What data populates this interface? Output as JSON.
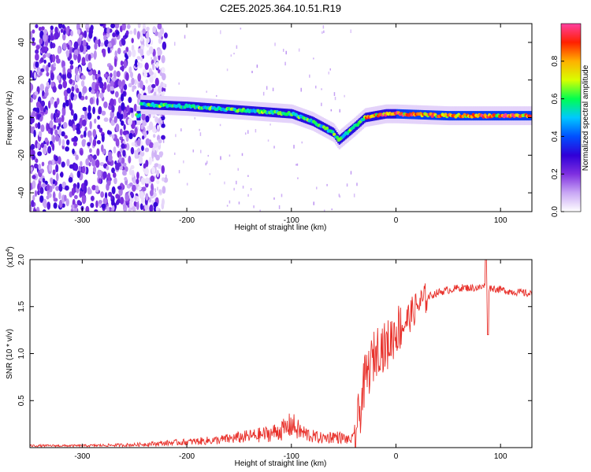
{
  "title": "C2E5.2025.364.10.51.R19",
  "chart_data": [
    {
      "type": "heatmap",
      "name": "spectrogram",
      "xlabel": "Height of straight line (km)",
      "ylabel": "Frequency (Hz)",
      "xlim": [
        -350,
        130
      ],
      "ylim": [
        -50,
        50
      ],
      "xticks": [
        -300,
        -200,
        -100,
        0,
        100
      ],
      "yticks": [
        -40,
        -20,
        0,
        20,
        40
      ],
      "colorbar": {
        "label": "Normalized spectral amplitude",
        "range": [
          0,
          1
        ],
        "ticks": [
          0.0,
          0.2,
          0.4,
          0.6,
          0.8
        ],
        "colors": [
          "#ffffff",
          "#c9a7f5",
          "#7f2fe0",
          "#2f00d8",
          "#0050ff",
          "#00c8ff",
          "#00ff50",
          "#d8ff00",
          "#ffb000",
          "#ff2000",
          "#ff40a0"
        ]
      },
      "noise_region_x": [
        -350,
        -235
      ],
      "signal_track": {
        "x": [
          -245,
          -200,
          -150,
          -100,
          -80,
          -60,
          -55,
          -40,
          -30,
          -20,
          -10,
          0,
          50,
          85,
          130
        ],
        "frequency": [
          7,
          6,
          4,
          2,
          -2,
          -8,
          -12,
          -5,
          0,
          1,
          2,
          2,
          1,
          1,
          1
        ]
      }
    },
    {
      "type": "line",
      "name": "snr",
      "xlabel": "Height of straight line (km)",
      "ylabel": "SNR (10 * v/v)",
      "y_multiplier": "(x10",
      "y_multiplier_exp": "4",
      "xlim": [
        -350,
        130
      ],
      "ylim": [
        0,
        2.0
      ],
      "xticks": [
        -300,
        -200,
        -100,
        0,
        100
      ],
      "yticks": [
        0.5,
        1.0,
        1.5,
        2.0
      ],
      "series": [
        {
          "name": "SNR",
          "color": "#e8302a",
          "x": [
            -350,
            -300,
            -250,
            -200,
            -170,
            -140,
            -120,
            -105,
            -100,
            -95,
            -90,
            -80,
            -70,
            -60,
            -50,
            -45,
            -40,
            -35,
            -30,
            -25,
            -20,
            -15,
            -10,
            -5,
            0,
            10,
            20,
            30,
            40,
            60,
            80,
            85,
            90,
            100,
            110,
            120,
            130
          ],
          "values": [
            0.02,
            0.02,
            0.03,
            0.06,
            0.08,
            0.12,
            0.15,
            0.2,
            0.25,
            0.2,
            0.16,
            0.12,
            0.1,
            0.12,
            0.1,
            0.08,
            0.1,
            0.35,
            0.7,
            0.85,
            1.0,
            1.1,
            1.05,
            1.15,
            1.25,
            1.35,
            1.5,
            1.6,
            1.65,
            1.7,
            1.7,
            1.72,
            1.7,
            1.68,
            1.66,
            1.65,
            1.63
          ]
        }
      ]
    }
  ]
}
